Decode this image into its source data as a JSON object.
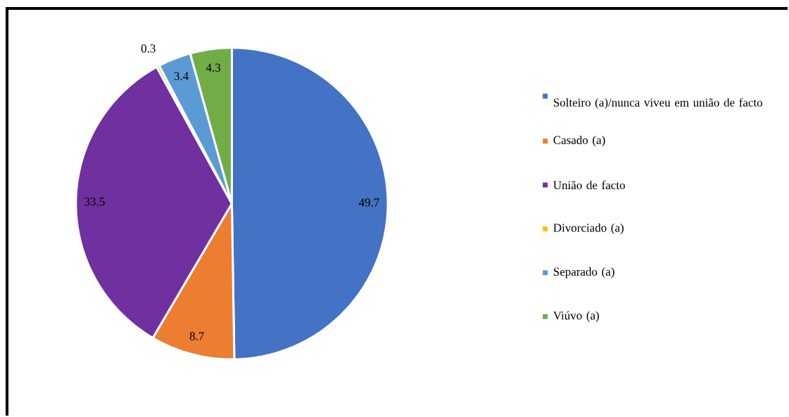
{
  "chart_data": {
    "type": "pie",
    "categories": [
      "Solteiro (a)/nunca viveu em união de facto",
      "Casado (a)",
      "União de facto",
      "Divorciado (a)",
      "Separado (a)",
      "Viúvo (a)"
    ],
    "values": [
      49.7,
      8.7,
      33.5,
      0.3,
      3.4,
      4.3
    ],
    "colors": [
      "#4472c4",
      "#ed7d31",
      "#7030a0",
      "#ffc000",
      "#5b9bd5",
      "#70ad47"
    ],
    "data_labels": true,
    "legend": "right"
  }
}
